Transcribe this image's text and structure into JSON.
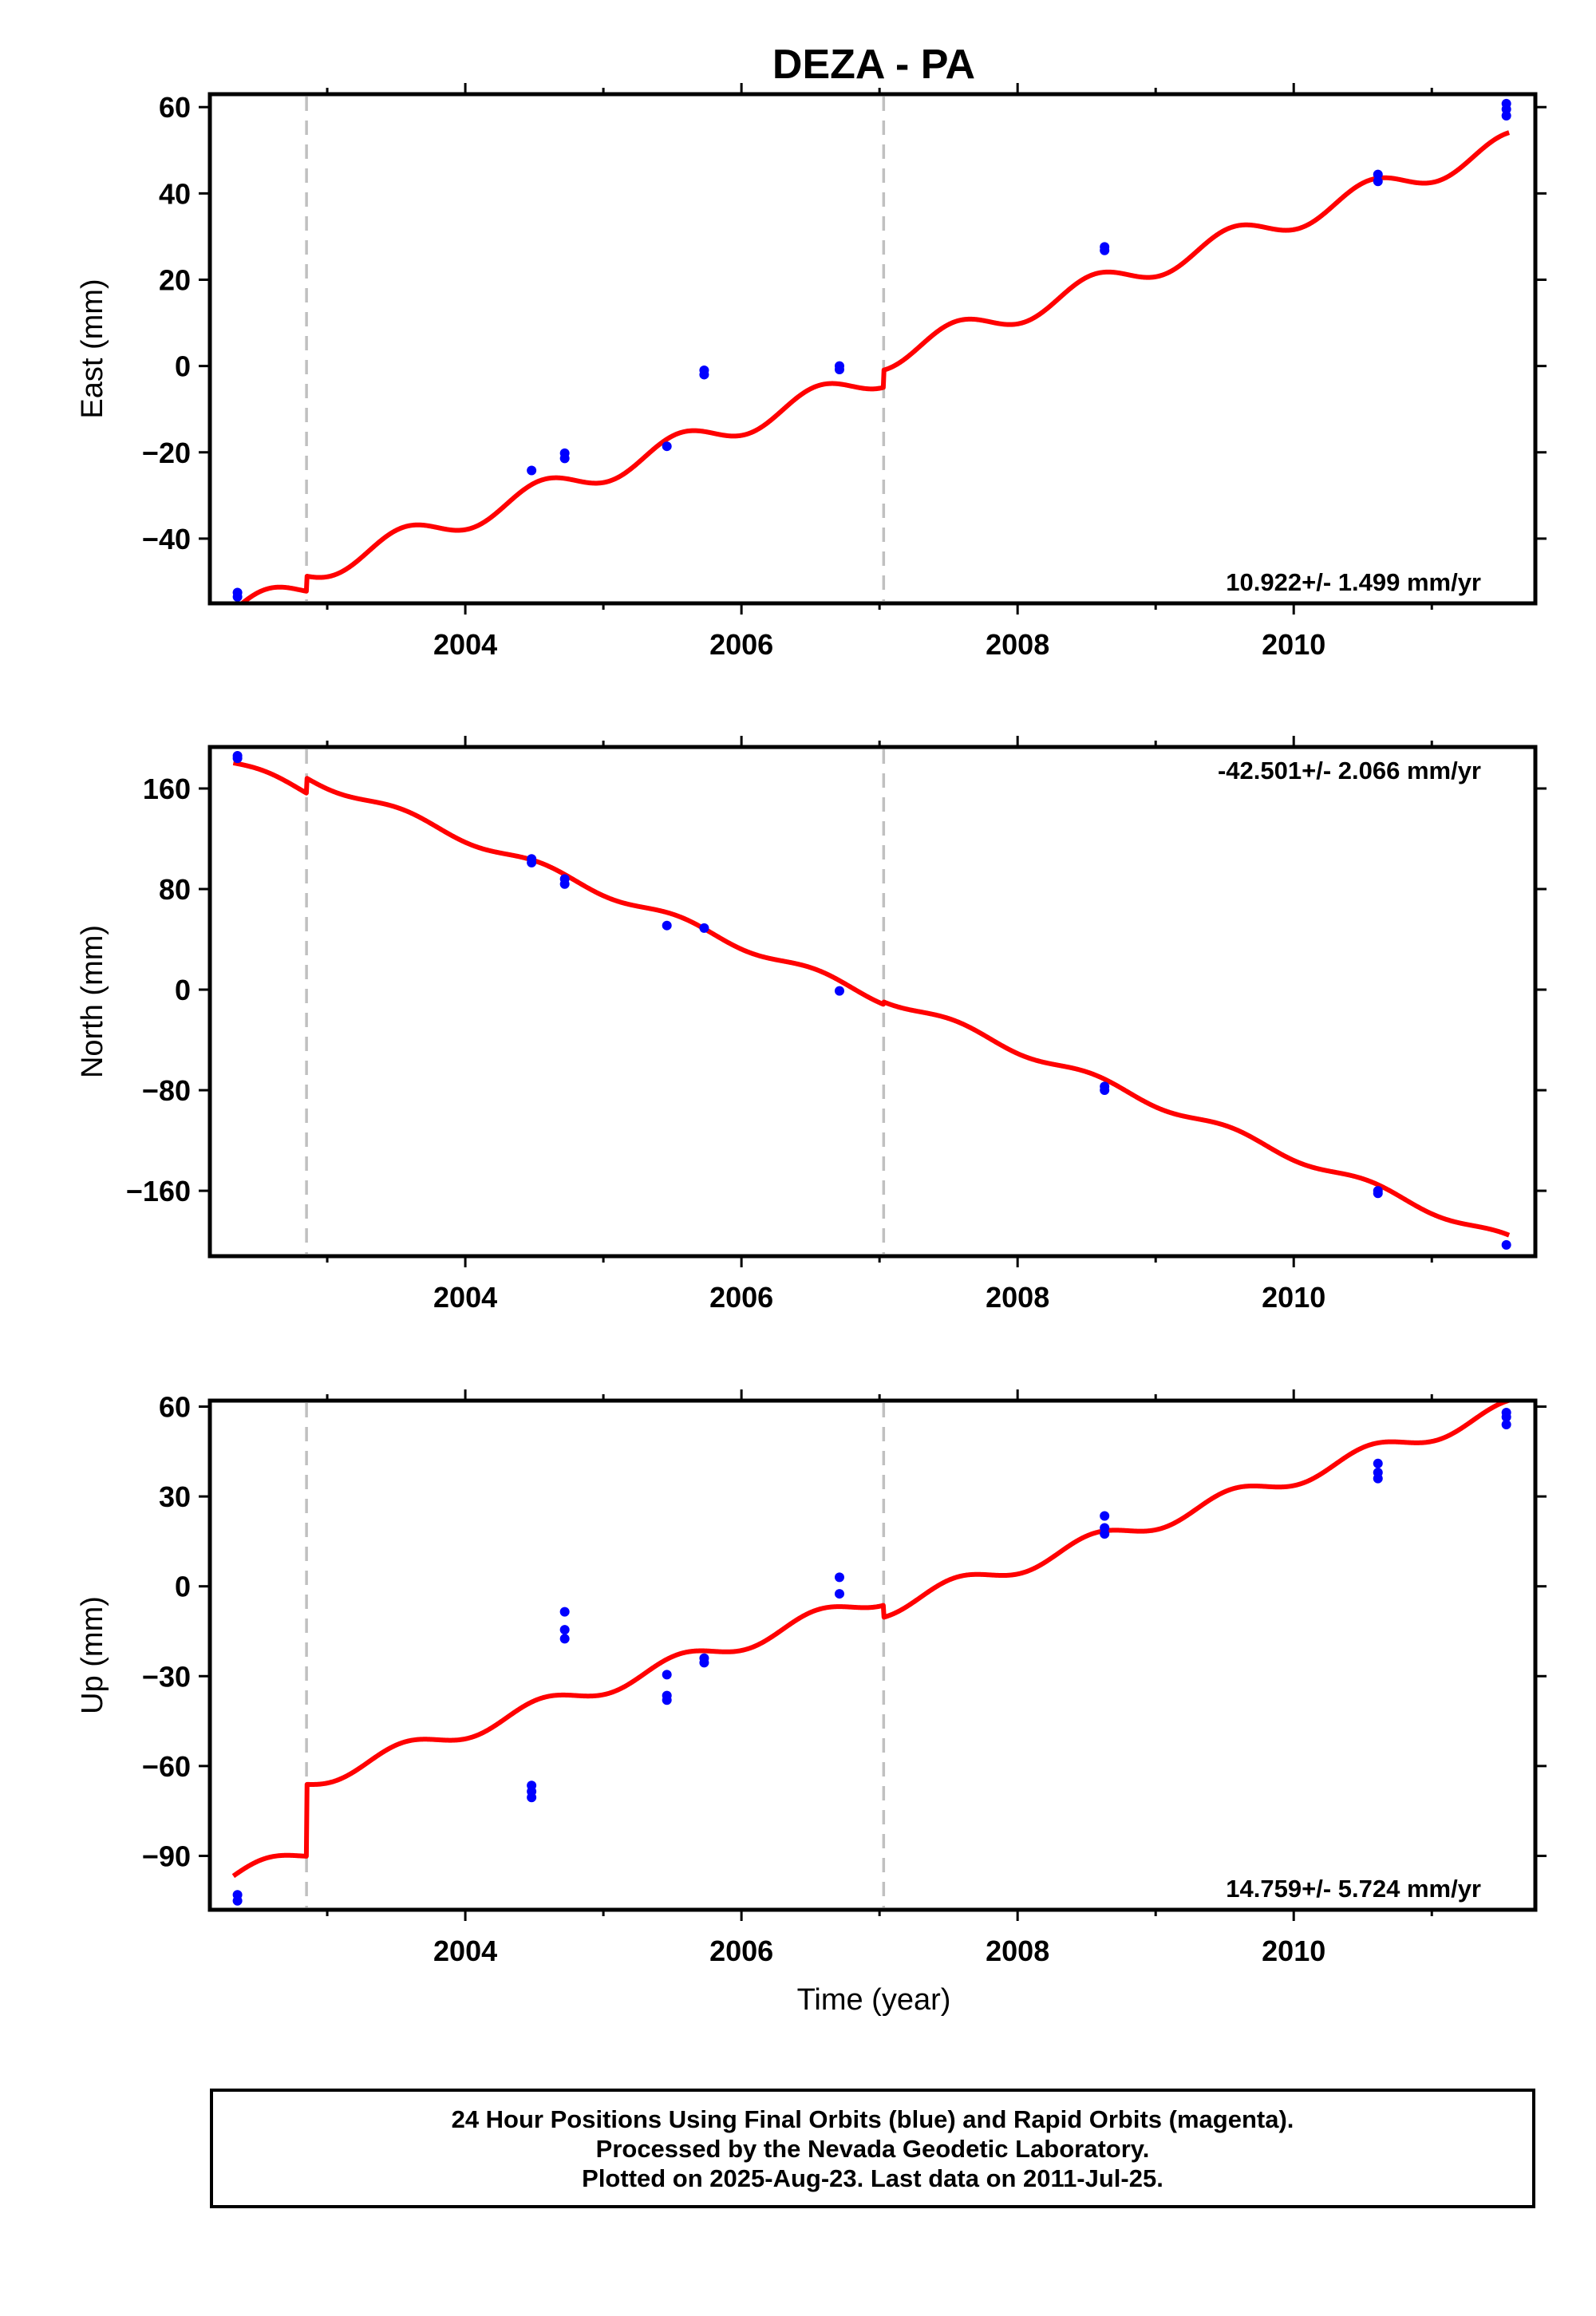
{
  "title": "DEZA - PA",
  "xlabel": "Time (year)",
  "footer": {
    "line1": "24 Hour Positions Using Final Orbits (blue) and Rapid Orbits (magenta).",
    "line2": "Processed by the Nevada Geodetic Laboratory.",
    "line3": "Plotted on 2025-Aug-23. Last data on 2011-Jul-25."
  },
  "colors": {
    "data": "#0000ff",
    "model": "#ff0000",
    "steps": "#c0c0c0",
    "frame": "#000000"
  },
  "chart_data": [
    {
      "type": "scatter",
      "ylabel": "East (mm)",
      "xlim": [
        2002.15,
        2011.75
      ],
      "ylim": [
        -55,
        63
      ],
      "xticks": [
        2004,
        2006,
        2008,
        2010
      ],
      "yticks": [
        -40,
        -20,
        0,
        20,
        40,
        60
      ],
      "rate": "10.922+/- 1.499 mm/yr",
      "rate_position": "bottom-right",
      "steps": [
        2002.85,
        2007.03
      ],
      "model": {
        "slope": 10.922,
        "intercept_2007": 1.5,
        "annual_amplitude": 2.8,
        "offsets": [
          3.5,
          4.0
        ]
      },
      "series": [
        {
          "name": "Final Orbits",
          "points": [
            [
              2002.35,
              -52.5
            ],
            [
              2002.35,
              -53.5
            ],
            [
              2004.48,
              -24.2
            ],
            [
              2004.72,
              -20.2
            ],
            [
              2004.72,
              -21.4
            ],
            [
              2005.46,
              -18.6
            ],
            [
              2005.73,
              -1.0
            ],
            [
              2005.73,
              -2.0
            ],
            [
              2006.71,
              0.0
            ],
            [
              2006.71,
              -0.8
            ],
            [
              2008.63,
              26.8
            ],
            [
              2008.63,
              27.6
            ],
            [
              2010.61,
              42.8
            ],
            [
              2010.61,
              44.4
            ],
            [
              2011.54,
              58.0
            ],
            [
              2011.54,
              59.5
            ],
            [
              2011.54,
              60.8
            ]
          ]
        }
      ]
    },
    {
      "type": "scatter",
      "ylabel": "North (mm)",
      "xlim": [
        2002.15,
        2011.75
      ],
      "ylim": [
        -212,
        193
      ],
      "xticks": [
        2004,
        2006,
        2008,
        2010
      ],
      "yticks": [
        -160,
        -80,
        0,
        80,
        160
      ],
      "rate": "-42.501+/- 2.066 mm/yr",
      "rate_position": "top-right",
      "steps": [
        2002.85,
        2007.03
      ],
      "model": {
        "slope": -42.501,
        "intercept_2007": -5,
        "annual_amplitude": 3.5,
        "offsets": [
          12,
          2
        ]
      },
      "series": [
        {
          "name": "Final Orbits",
          "points": [
            [
              2002.35,
              184
            ],
            [
              2002.35,
              186
            ],
            [
              2004.48,
              101
            ],
            [
              2004.48,
              104
            ],
            [
              2004.72,
              84
            ],
            [
              2004.72,
              88
            ],
            [
              2005.46,
              51
            ],
            [
              2005.73,
              49
            ],
            [
              2006.71,
              -1
            ],
            [
              2008.63,
              -77
            ],
            [
              2008.63,
              -80
            ],
            [
              2010.61,
              -160
            ],
            [
              2010.61,
              -162
            ],
            [
              2011.54,
              -203
            ]
          ]
        }
      ]
    },
    {
      "type": "scatter",
      "ylabel": "Up (mm)",
      "xlim": [
        2002.15,
        2011.75
      ],
      "ylim": [
        -108,
        62
      ],
      "xticks": [
        2004,
        2006,
        2008,
        2010
      ],
      "yticks": [
        -90,
        -60,
        -30,
        0,
        30,
        60
      ],
      "rate": "14.759+/- 5.724 mm/yr",
      "rate_position": "bottom-right",
      "steps": [
        2002.85,
        2007.03
      ],
      "model": {
        "slope": 14.759,
        "intercept_2007": -8,
        "annual_amplitude": 2.8,
        "offsets": [
          24,
          -4
        ]
      },
      "series": [
        {
          "name": "Final Orbits",
          "points": [
            [
              2002.35,
              -103
            ],
            [
              2002.35,
              -105
            ],
            [
              2004.48,
              -66.5
            ],
            [
              2004.48,
              -68.5
            ],
            [
              2004.48,
              -70.5
            ],
            [
              2004.72,
              -8.5
            ],
            [
              2004.72,
              -14.5
            ],
            [
              2004.72,
              -17.5
            ],
            [
              2005.46,
              -29.5
            ],
            [
              2005.46,
              -36.5
            ],
            [
              2005.46,
              -38
            ],
            [
              2005.73,
              -24
            ],
            [
              2005.73,
              -25.5
            ],
            [
              2006.71,
              3.0
            ],
            [
              2006.71,
              -2.5
            ],
            [
              2008.63,
              23.5
            ],
            [
              2008.63,
              19.5
            ],
            [
              2008.63,
              17.5
            ],
            [
              2010.61,
              41
            ],
            [
              2010.61,
              38
            ],
            [
              2010.61,
              36
            ],
            [
              2011.54,
              58
            ],
            [
              2011.54,
              56.5
            ],
            [
              2011.54,
              54
            ]
          ]
        }
      ]
    }
  ]
}
